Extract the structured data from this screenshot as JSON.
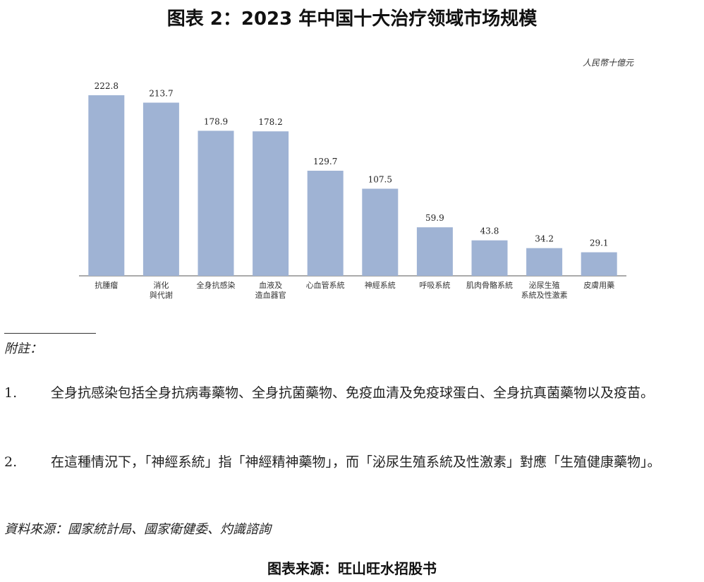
{
  "figure": {
    "title": "图表 2：2023 年中国十大治疗领域市场规模",
    "unit": "人民幣十億元"
  },
  "chart_data": {
    "type": "bar",
    "categories": [
      "抗腫瘤",
      "消化\n與代謝",
      "全身抗感染",
      "血液及\n造血器官",
      "心血管系統",
      "神經系統",
      "呼吸系統",
      "肌肉骨骼系統",
      "泌尿生殖\n系統及性激素",
      "皮膚用藥"
    ],
    "values": [
      222.8,
      213.7,
      178.9,
      178.2,
      129.7,
      107.5,
      59.9,
      43.8,
      34.2,
      29.1
    ],
    "ylim": [
      0,
      240
    ],
    "bar_color": "#9fb3d4",
    "grid": false,
    "legend": "none"
  },
  "notes": {
    "heading": "附註：",
    "items": [
      {
        "num": "1.",
        "text": "全身抗感染包括全身抗病毒藥物、全身抗菌藥物、免疫血清及免疫球蛋白、全身抗真菌藥物以及疫苗。"
      },
      {
        "num": "2.",
        "text": "在這種情況下，「神經系統」指「神經精神藥物」，而「泌尿生殖系統及性激素」對應「生殖健康藥物」。"
      }
    ]
  },
  "source_text": "資料來源：國家統計局、國家衛健委、灼識諮詢",
  "footer": "图表来源：旺山旺水招股书"
}
